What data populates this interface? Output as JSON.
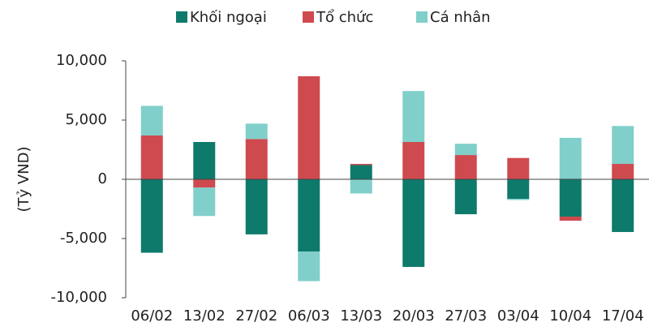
{
  "chart_data": {
    "type": "stacked_bar",
    "y_label": "(Tỷ VND)",
    "categories": [
      "06/02",
      "13/02",
      "27/02",
      "06/03",
      "13/03",
      "20/03",
      "27/03",
      "03/04",
      "10/04",
      "17/04"
    ],
    "series": [
      {
        "name": "Khối ngoại",
        "color": "#0e7a6c",
        "values": [
          -6200,
          3150,
          -4650,
          -6100,
          1200,
          -7400,
          -2950,
          -1650,
          -3150,
          -4450
        ]
      },
      {
        "name": "Tổ chức",
        "color": "#cf4a4f",
        "values": [
          3700,
          -700,
          3400,
          8700,
          100,
          3150,
          2050,
          1800,
          -350,
          1300
        ]
      },
      {
        "name": "Cá nhân",
        "color": "#80cfca",
        "values": [
          2500,
          -2400,
          1300,
          -2500,
          -1200,
          4300,
          950,
          -100,
          3500,
          3200
        ]
      }
    ],
    "ylim": [
      -10000,
      10000
    ],
    "yticks": [
      {
        "value": -10000,
        "label": "-10,000"
      },
      {
        "value": -5000,
        "label": "-5,000"
      },
      0,
      {
        "value": 5000,
        "label": "5,000"
      },
      {
        "value": 10000,
        "label": "10,000"
      }
    ],
    "legend": "top"
  }
}
